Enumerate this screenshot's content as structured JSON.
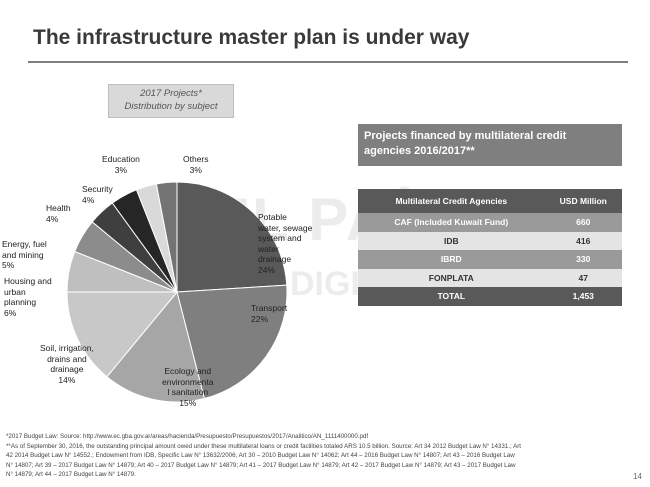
{
  "title": "The infrastructure master plan is under way",
  "chart_caption": [
    "2017 Projects*",
    "Distribution by subject"
  ],
  "watermark": [
    "EL PAÍS",
    "DIGITAL"
  ],
  "chart_data": {
    "type": "pie",
    "title": "2017 Projects* Distribution by subject",
    "categories": [
      "Potable water, sewage system and water drainage",
      "Transport",
      "Ecology and environmental sanitation",
      "Soil, irrigation, drains and drainage",
      "Housing and urban planning",
      "Energy, fuel and mining",
      "Health",
      "Security",
      "Education",
      "Others"
    ],
    "values": [
      24,
      22,
      15,
      14,
      6,
      5,
      4,
      4,
      3,
      3
    ],
    "unit": "%",
    "colors": [
      "#595959",
      "#7f7f7f",
      "#a6a6a6",
      "#c8c8c8",
      "#bfbfbf",
      "#8c8c8c",
      "#3f3f3f",
      "#262626",
      "#d9d9d9",
      "#737373"
    ],
    "labels": [
      {
        "lines": [
          "Potable",
          "water, sewage",
          "system and",
          "water",
          "drainage",
          "24%"
        ]
      },
      {
        "lines": [
          "Transport",
          "22%"
        ]
      },
      {
        "lines": [
          "Ecology and",
          "environmenta",
          "l sanitation",
          "15%"
        ]
      },
      {
        "lines": [
          "Soil, irrigation,",
          "drains and",
          "drainage",
          "14%"
        ]
      },
      {
        "lines": [
          "Housing and",
          "urban",
          "planning",
          "6%"
        ]
      },
      {
        "lines": [
          "Energy, fuel",
          "and mining",
          "5%"
        ]
      },
      {
        "lines": [
          "Health",
          "4%"
        ]
      },
      {
        "lines": [
          "Security",
          "4%"
        ]
      },
      {
        "lines": [
          "Education",
          "3%"
        ]
      },
      {
        "lines": [
          "Others",
          "3%"
        ]
      }
    ]
  },
  "credit_table": {
    "title": "Projects financed by multilateral credit agencies 2016/2017**",
    "headers": [
      "Multilateral Credit Agencies",
      "USD Million"
    ],
    "rows": [
      [
        "CAF (Included Kuwait Fund)",
        "660"
      ],
      [
        "IDB",
        "416"
      ],
      [
        "IBRD",
        "330"
      ],
      [
        "FONPLATA",
        "47"
      ]
    ],
    "total": [
      "TOTAL",
      "1,453"
    ]
  },
  "footnotes": [
    "*2017 Budget Law: Source: http://www.ec.gba.gov.ar/areas/hacienda/Presupuesto/Presupuestos/2017/Analitico/AN_1111400000.pdf",
    "**As of September 30, 2016, the outstanding principal amount owed under these multilateral loans or credit facilities totaled ARS 10.5 billion. Source: Art 34 2012 Budget Law N° 14331.; Art",
    "42 2014 Budget Law N° 14552.; Endowment from IDB, Specific Law N° 13632/2006; Art 30 – 2010 Budget Law N° 14062; Art 44 – 2016 Budget Law N° 14807; Art 43 – 2016 Budget Law",
    "N° 14807; Art 39 – 2017 Budget Law N° 14879; Art 40 – 2017 Budget Law N° 14879; Art 41 – 2017 Budget Law N° 14879; Art 42 – 2017 Budget Law N° 14879; Art 43 – 2017 Budget Law",
    "N° 14879; Art 44 – 2017 Budget Law N° 14879."
  ],
  "page_number": "14"
}
